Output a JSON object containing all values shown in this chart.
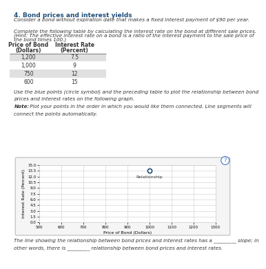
{
  "title": "4. Bond prices and interest yields",
  "desc1": "Consider a bond without expiration date that makes a fixed interest payment of $90 per year.",
  "table_intro": "Complete the following table by calculating the interest rate on the bond at different sale prices.",
  "hint1": "(Hint: The effective interest rate on a bond is a ratio of the interest payment to the sale price of",
  "hint2": "the bond times 100.)",
  "col1_header1": "Price of Bond",
  "col1_header2": "(Dollars)",
  "col2_header1": "Interest Rate",
  "col2_header2": "(Percent)",
  "table_data": [
    [
      "1,200",
      "7.5"
    ],
    [
      "1,000",
      "9"
    ],
    [
      "750",
      "12"
    ],
    [
      "600",
      "15"
    ]
  ],
  "row_colors": [
    "#e0e0e0",
    "#ffffff",
    "#e0e0e0",
    "#ffffff"
  ],
  "instr1": "Use the blue points (circle symbol) and the preceding table to plot the relationship between bond",
  "instr2": "prices and interest rates on the following graph.",
  "note_bold": "Note:",
  "note_rest": " Plot your points in the order in which you would like them connected. Line segments will",
  "note2": "connect the points automatically.",
  "graph": {
    "xlabel": "Price of Bond (Dollars)",
    "ylabel": "Interest Rate (Percent)",
    "xlim": [
      500,
      1300
    ],
    "ylim": [
      0,
      15.0
    ],
    "xticks": [
      500,
      600,
      700,
      800,
      900,
      1000,
      1100,
      1200,
      1300
    ],
    "yticks": [
      0,
      1.5,
      3.0,
      4.5,
      6.0,
      7.5,
      9.0,
      10.5,
      12.0,
      13.5,
      15.0
    ],
    "legend_label": "Relationship",
    "point_color": "#1f4e79",
    "point_x": 1000,
    "point_y": 13.5,
    "bg_color": "#ffffff",
    "grid_color": "#cccccc",
    "border_color": "#cccccc",
    "outer_bg": "#f5f5f5"
  },
  "footer1": "The line showing the relationship between bond prices and interest rates has a",
  "footer1b": "slope; in",
  "footer2a": "other words, there is",
  "footer2b": "relationship between bond prices and interest rates.",
  "body_bg": "#ffffff",
  "text_color": "#333333",
  "header_color": "#1f4e79"
}
